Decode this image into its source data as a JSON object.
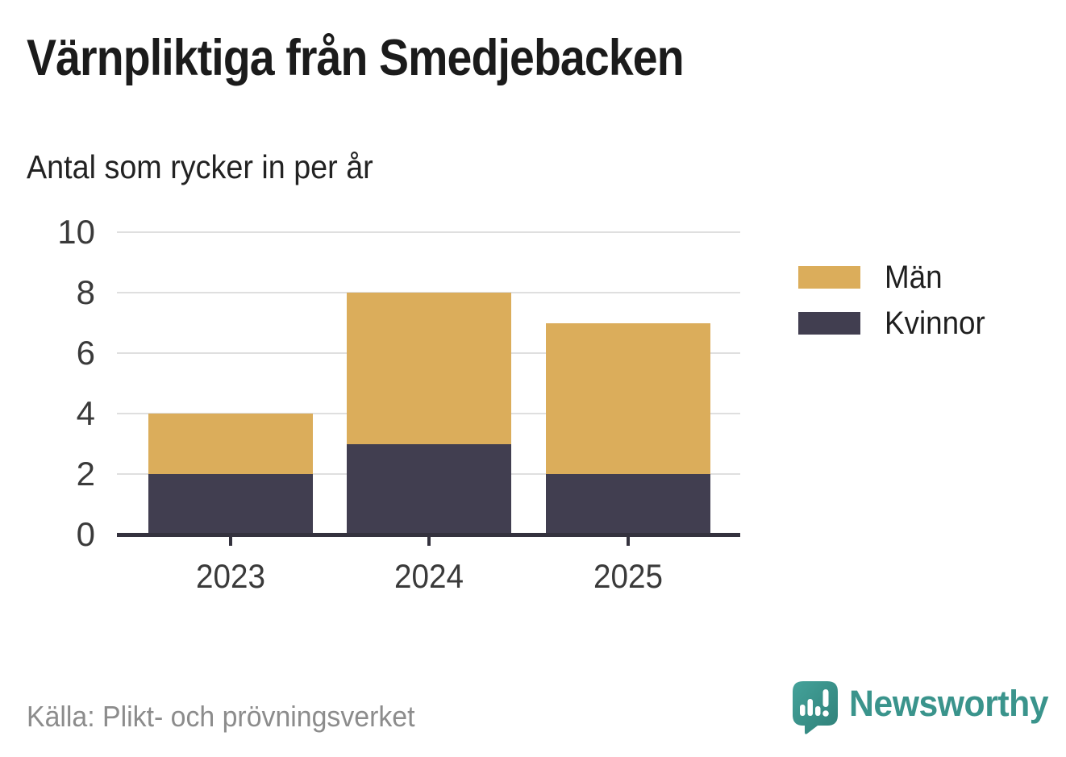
{
  "title": "Värnpliktiga från Smedjebacken",
  "subtitle": "Antal som rycker in per år",
  "source": "Källa: Plikt- och prövningsverket",
  "branding": {
    "name": "Newsworthy",
    "icon": "newsworthy-speech-bubble-barchart-icon",
    "color": "#3A948C"
  },
  "colors": {
    "men": "#DBAD5B",
    "women": "#413E50",
    "axis": "#34323E",
    "grid": "#DFDFDF",
    "tick_text": "#3a3a3a",
    "muted_text": "#8c8c8c"
  },
  "legend": [
    {
      "label": "Män",
      "color_key": "men"
    },
    {
      "label": "Kvinnor",
      "color_key": "women"
    }
  ],
  "chart_data": {
    "type": "bar",
    "stacked": true,
    "title": "Värnpliktiga från Smedjebacken",
    "subtitle": "Antal som rycker in per år",
    "categories": [
      "2023",
      "2024",
      "2025"
    ],
    "series": [
      {
        "name": "Kvinnor",
        "values": [
          2,
          3,
          2
        ],
        "color_key": "women"
      },
      {
        "name": "Män",
        "values": [
          2,
          5,
          5
        ],
        "color_key": "men"
      }
    ],
    "totals": [
      4,
      8,
      7
    ],
    "xlabel": "",
    "ylabel": "",
    "ylim": [
      0,
      10
    ],
    "yticks": [
      0,
      2,
      4,
      6,
      8,
      10
    ],
    "grid": true,
    "legend_position": "right"
  }
}
